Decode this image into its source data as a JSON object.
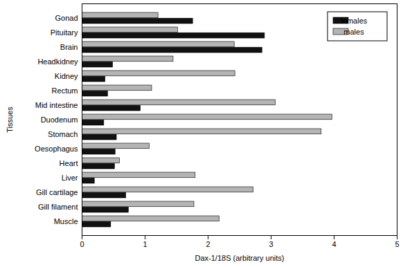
{
  "chart_data": {
    "type": "bar",
    "orientation": "horizontal",
    "x_label": "Dax-1/18S (arbitrary units)",
    "y_label": "Tissues",
    "categories": [
      "Gonad",
      "Pituitary",
      "Brain",
      "Headkidney",
      "Kidney",
      "Rectum",
      "Mid intestine",
      "Duodenum",
      "Stomach",
      "Oesophagus",
      "Heart",
      "Liver",
      "Gill cartilage",
      "Gill filament",
      "Muscle"
    ],
    "series": [
      {
        "name": "females",
        "color": "#111111",
        "values": [
          1.76,
          2.9,
          2.86,
          0.49,
          0.37,
          0.41,
          0.93,
          0.35,
          0.55,
          0.53,
          0.52,
          0.2,
          0.7,
          0.74,
          0.46
        ]
      },
      {
        "name": "males",
        "color": "#b4b4b4",
        "values": [
          1.21,
          1.52,
          2.42,
          1.45,
          2.43,
          1.11,
          3.07,
          3.97,
          3.8,
          1.07,
          0.6,
          1.8,
          2.72,
          1.78,
          2.18
        ]
      }
    ],
    "xlim": [
      0,
      5
    ],
    "xticks": [
      0,
      1,
      2,
      3,
      4,
      5
    ],
    "grid": false,
    "legend": "top-right"
  }
}
